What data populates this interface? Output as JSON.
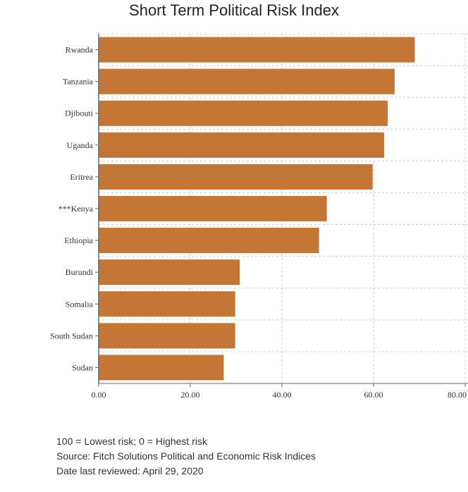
{
  "chart_data": {
    "type": "bar",
    "orientation": "horizontal",
    "title": "Short Term Political Risk Index",
    "categories": [
      "Rwanda",
      "Tanzania",
      "Djibouti",
      "Uganda",
      "Eritrea",
      "***Kenya",
      "Ethiopia",
      "Burundi",
      "Somalia",
      "South Sudan",
      "Sudan"
    ],
    "values": [
      69.0,
      64.6,
      63.1,
      62.3,
      59.8,
      49.8,
      48.1,
      30.8,
      29.8,
      29.8,
      27.3
    ],
    "xlim": [
      0,
      80
    ],
    "xticks": [
      "0.00",
      "20.00",
      "40.00",
      "60.00",
      "80.00"
    ],
    "xlabel": "",
    "ylabel": "",
    "grid": true,
    "bar_color": "#c47636"
  },
  "notes": {
    "scale": "100 = Lowest risk; 0 = Highest risk",
    "source": "Source: Fitch Solutions Political and Economic Risk Indices",
    "reviewed": "Date last reviewed: April 29, 2020"
  }
}
